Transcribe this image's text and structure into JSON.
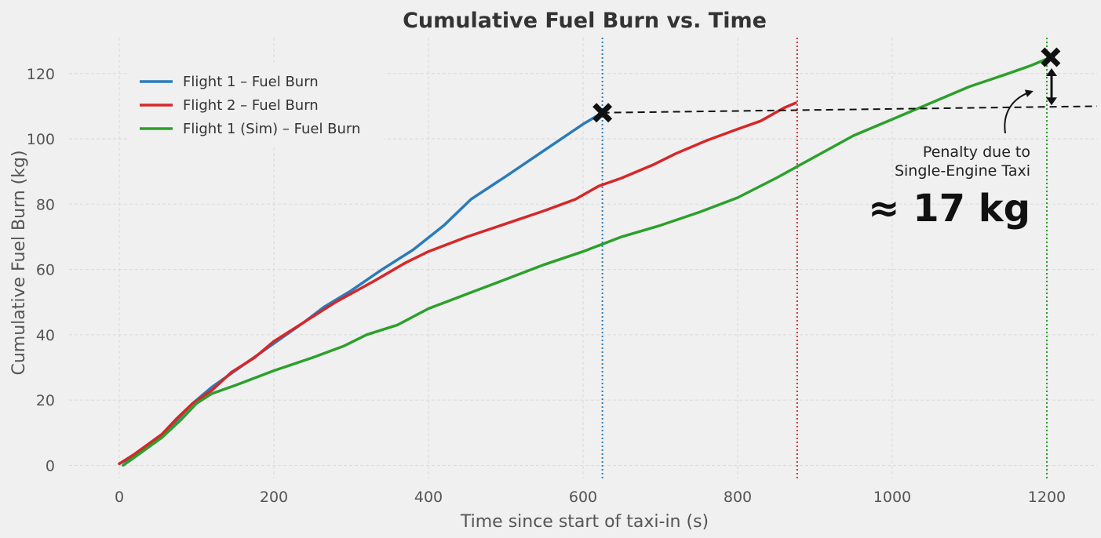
{
  "chart_data": {
    "type": "line",
    "title": "Cumulative Fuel Burn vs. Time",
    "xlabel": "Time since start of taxi-in (s)",
    "ylabel": "Cumulative Fuel Burn (kg)",
    "xlim": [
      -65,
      1265
    ],
    "ylim": [
      -4,
      131
    ],
    "xticks": [
      0,
      200,
      400,
      600,
      800,
      1000,
      1200
    ],
    "yticks": [
      0,
      20,
      40,
      60,
      80,
      100,
      120
    ],
    "grid": true,
    "legend_position": "top-left",
    "series": [
      {
        "name": "Flight 1 – Fuel Burn",
        "color": "#2b7bba",
        "points": [
          [
            0,
            0.5
          ],
          [
            20,
            3
          ],
          [
            55,
            9
          ],
          [
            75,
            14
          ],
          [
            95,
            19
          ],
          [
            120,
            24
          ],
          [
            150,
            29
          ],
          [
            180,
            34
          ],
          [
            210,
            39
          ],
          [
            240,
            44
          ],
          [
            265,
            48.5
          ],
          [
            300,
            53.5
          ],
          [
            340,
            60
          ],
          [
            380,
            66
          ],
          [
            420,
            73.5
          ],
          [
            455,
            81.5
          ],
          [
            500,
            88.5
          ],
          [
            550,
            96.5
          ],
          [
            600,
            104.5
          ],
          [
            625,
            108
          ]
        ]
      },
      {
        "name": "Flight 2 – Fuel Burn",
        "color": "#d62728",
        "points": [
          [
            0,
            0.5
          ],
          [
            20,
            3.5
          ],
          [
            55,
            9.5
          ],
          [
            75,
            14.5
          ],
          [
            95,
            19
          ],
          [
            120,
            23
          ],
          [
            145,
            28.5
          ],
          [
            175,
            33
          ],
          [
            200,
            38
          ],
          [
            240,
            44
          ],
          [
            280,
            50
          ],
          [
            330,
            56.5
          ],
          [
            370,
            62
          ],
          [
            400,
            65.5
          ],
          [
            450,
            70
          ],
          [
            500,
            74
          ],
          [
            550,
            78
          ],
          [
            590,
            81.5
          ],
          [
            620,
            85.5
          ],
          [
            650,
            88
          ],
          [
            690,
            92
          ],
          [
            720,
            95.5
          ],
          [
            760,
            99.5
          ],
          [
            800,
            103
          ],
          [
            830,
            105.5
          ],
          [
            860,
            109.5
          ],
          [
            875,
            111
          ]
        ]
      },
      {
        "name": "Flight 1 (Sim) – Fuel Burn",
        "color": "#2ca02c",
        "points": [
          [
            5,
            0
          ],
          [
            20,
            2.5
          ],
          [
            55,
            8.5
          ],
          [
            80,
            14
          ],
          [
            100,
            19
          ],
          [
            120,
            22
          ],
          [
            150,
            24.5
          ],
          [
            200,
            29
          ],
          [
            250,
            33
          ],
          [
            290,
            36.5
          ],
          [
            320,
            40
          ],
          [
            360,
            43
          ],
          [
            400,
            48
          ],
          [
            450,
            52.5
          ],
          [
            500,
            57
          ],
          [
            550,
            61.5
          ],
          [
            600,
            65.5
          ],
          [
            650,
            70
          ],
          [
            700,
            73.5
          ],
          [
            750,
            77.5
          ],
          [
            800,
            82
          ],
          [
            850,
            88
          ],
          [
            900,
            94.5
          ],
          [
            950,
            101
          ],
          [
            1000,
            106
          ],
          [
            1050,
            111
          ],
          [
            1100,
            116
          ],
          [
            1150,
            120
          ],
          [
            1180,
            122.5
          ],
          [
            1205,
            125
          ]
        ]
      }
    ],
    "vertical_lines": [
      {
        "x": 625,
        "color": "#2b7bba"
      },
      {
        "x": 877,
        "color": "#d62728"
      },
      {
        "x": 1200,
        "color": "#2ca02c"
      }
    ],
    "markers": [
      {
        "x": 625,
        "y": 108
      },
      {
        "x": 1205,
        "y": 125
      }
    ],
    "reference_line": {
      "x_start": 625,
      "x_end": 1265,
      "y_start": 108,
      "y_end": 110
    },
    "annotation": {
      "line1": "Penalty due to",
      "line2": "Single-Engine Taxi",
      "value": "≈ 17 kg"
    }
  }
}
